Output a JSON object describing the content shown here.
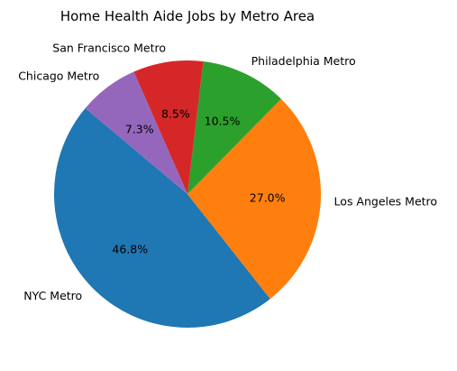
{
  "chart_data": {
    "type": "pie",
    "title": "Home Health Aide Jobs by Metro Area",
    "slices": [
      {
        "label": "NYC Metro",
        "value": 46.8,
        "pct_label": "46.8%",
        "color": "#1f77b4"
      },
      {
        "label": "Los Angeles Metro",
        "value": 27.0,
        "pct_label": "27.0%",
        "color": "#ff7f0e"
      },
      {
        "label": "Philadelphia Metro",
        "value": 10.5,
        "pct_label": "10.5%",
        "color": "#2ca02c"
      },
      {
        "label": "San Francisco Metro",
        "value": 8.5,
        "pct_label": "8.5%",
        "color": "#d62728"
      },
      {
        "label": "Chicago Metro",
        "value": 7.3,
        "pct_label": "7.3%",
        "color": "#9467bd"
      }
    ]
  }
}
